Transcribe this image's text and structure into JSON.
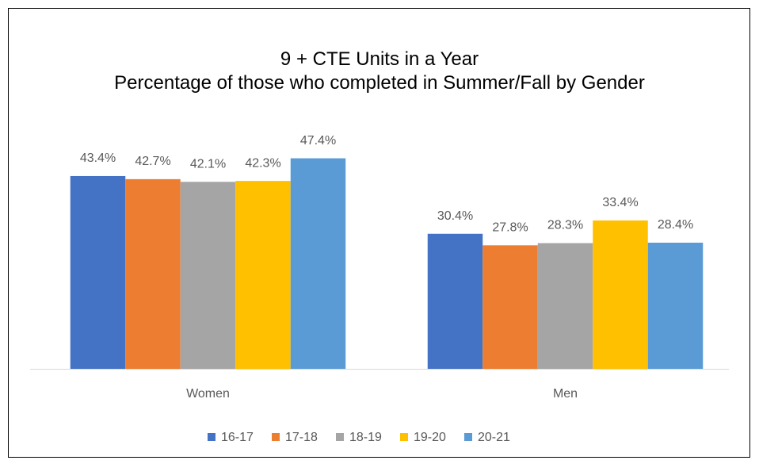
{
  "chart_data": {
    "type": "bar",
    "title": "9 + CTE Units in a Year",
    "subtitle": "Percentage of those who completed in Summer/Fall by Gender",
    "categories": [
      "Women",
      "Men"
    ],
    "series": [
      {
        "name": "16-17",
        "color": "#4472c4",
        "values": [
          43.4,
          30.4
        ],
        "value_labels": [
          "43.4%",
          "30.4%"
        ]
      },
      {
        "name": "17-18",
        "color": "#ed7d31",
        "values": [
          42.7,
          27.8
        ],
        "value_labels": [
          "42.7%",
          "27.8%"
        ]
      },
      {
        "name": "18-19",
        "color": "#a5a5a5",
        "values": [
          42.1,
          28.3
        ],
        "value_labels": [
          "42.1%",
          "28.3%"
        ]
      },
      {
        "name": "19-20",
        "color": "#ffc000",
        "values": [
          42.3,
          33.4
        ],
        "value_labels": [
          "42.3%",
          "33.4%"
        ]
      },
      {
        "name": "20-21",
        "color": "#5b9bd5",
        "values": [
          47.4,
          28.4
        ],
        "value_labels": [
          "47.4%",
          "28.4%"
        ]
      }
    ],
    "ylim": [
      0,
      50
    ],
    "legend": "bottom"
  }
}
